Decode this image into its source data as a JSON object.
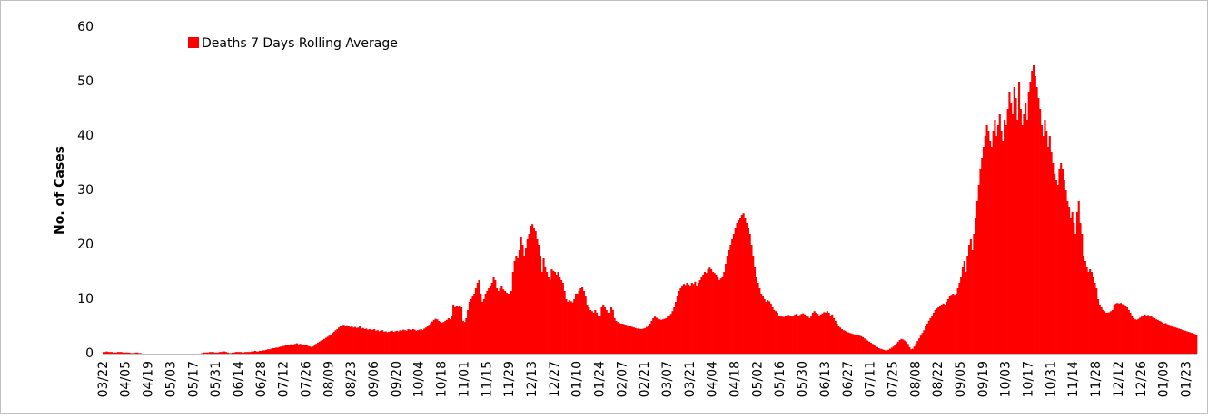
{
  "chart_data": {
    "type": "bar",
    "legend": "Deaths 7 Days Rolling Average",
    "color": "#ff0000",
    "ylabel": "No. of Cases",
    "ylim": [
      0,
      60
    ],
    "yticks": [
      0,
      10,
      20,
      30,
      40,
      50,
      60
    ],
    "grid": false,
    "legend_position": "top-left",
    "categories": [
      "03/22",
      null,
      null,
      null,
      null,
      null,
      null,
      null,
      null,
      null,
      null,
      null,
      null,
      null,
      "04/05",
      null,
      null,
      null,
      null,
      null,
      null,
      null,
      null,
      null,
      null,
      null,
      null,
      null,
      "04/19",
      null,
      null,
      null,
      null,
      null,
      null,
      null,
      null,
      null,
      null,
      null,
      null,
      null,
      "05/03",
      null,
      null,
      null,
      null,
      null,
      null,
      null,
      null,
      null,
      null,
      null,
      null,
      null,
      "05/17",
      null,
      null,
      null,
      null,
      null,
      null,
      null,
      null,
      null,
      null,
      null,
      null,
      null,
      "05/31",
      null,
      null,
      null,
      null,
      null,
      null,
      null,
      null,
      null,
      null,
      null,
      null,
      null,
      "06/14",
      null,
      null,
      null,
      null,
      null,
      null,
      null,
      null,
      null,
      null,
      null,
      null,
      null,
      "06/28",
      null,
      null,
      null,
      null,
      null,
      null,
      null,
      null,
      null,
      null,
      null,
      null,
      null,
      "07/12",
      null,
      null,
      null,
      null,
      null,
      null,
      null,
      null,
      null,
      null,
      null,
      null,
      null,
      "07/26",
      null,
      null,
      null,
      null,
      null,
      null,
      null,
      null,
      null,
      null,
      null,
      null,
      null,
      "08/09",
      null,
      null,
      null,
      null,
      null,
      null,
      null,
      null,
      null,
      null,
      null,
      null,
      null,
      "08/23",
      null,
      null,
      null,
      null,
      null,
      null,
      null,
      null,
      null,
      null,
      null,
      null,
      null,
      "09/06",
      null,
      null,
      null,
      null,
      null,
      null,
      null,
      null,
      null,
      null,
      null,
      null,
      null,
      "09/20",
      null,
      null,
      null,
      null,
      null,
      null,
      null,
      null,
      null,
      null,
      null,
      null,
      null,
      "10/04",
      null,
      null,
      null,
      null,
      null,
      null,
      null,
      null,
      null,
      null,
      null,
      null,
      null,
      "10/18",
      null,
      null,
      null,
      null,
      null,
      null,
      null,
      null,
      null,
      null,
      null,
      null,
      null,
      "11/01",
      null,
      null,
      null,
      null,
      null,
      null,
      null,
      null,
      null,
      null,
      null,
      null,
      null,
      "11/15",
      null,
      null,
      null,
      null,
      null,
      null,
      null,
      null,
      null,
      null,
      null,
      null,
      null,
      "11/29",
      null,
      null,
      null,
      null,
      null,
      null,
      null,
      null,
      null,
      null,
      null,
      null,
      null,
      "12/13",
      null,
      null,
      null,
      null,
      null,
      null,
      null,
      null,
      null,
      null,
      null,
      null,
      null,
      "12/27",
      null,
      null,
      null,
      null,
      null,
      null,
      null,
      null,
      null,
      null,
      null,
      null,
      null,
      "01/10",
      null,
      null,
      null,
      null,
      null,
      null,
      null,
      null,
      null,
      null,
      null,
      null,
      null,
      "01/24",
      null,
      null,
      null,
      null,
      null,
      null,
      null,
      null,
      null,
      null,
      null,
      null,
      null,
      "02/07",
      null,
      null,
      null,
      null,
      null,
      null,
      null,
      null,
      null,
      null,
      null,
      null,
      null,
      "02/21",
      null,
      null,
      null,
      null,
      null,
      null,
      null,
      null,
      null,
      null,
      null,
      null,
      null,
      "03/07",
      null,
      null,
      null,
      null,
      null,
      null,
      null,
      null,
      null,
      null,
      null,
      null,
      null,
      "03/21",
      null,
      null,
      null,
      null,
      null,
      null,
      null,
      null,
      null,
      null,
      null,
      null,
      null,
      "04/04",
      null,
      null,
      null,
      null,
      null,
      null,
      null,
      null,
      null,
      null,
      null,
      null,
      null,
      "04/18",
      null,
      null,
      null,
      null,
      null,
      null,
      null,
      null,
      null,
      null,
      null,
      null,
      null,
      "05/02",
      null,
      null,
      null,
      null,
      null,
      null,
      null,
      null,
      null,
      null,
      null,
      null,
      null,
      "05/16",
      null,
      null,
      null,
      null,
      null,
      null,
      null,
      null,
      null,
      null,
      null,
      null,
      null,
      "05/30",
      null,
      null,
      null,
      null,
      null,
      null,
      null,
      null,
      null,
      null,
      null,
      null,
      null,
      "06/13",
      null,
      null,
      null,
      null,
      null,
      null,
      null,
      null,
      null,
      null,
      null,
      null,
      null,
      "06/27",
      null,
      null,
      null,
      null,
      null,
      null,
      null,
      null,
      null,
      null,
      null,
      null,
      null,
      "07/11",
      null,
      null,
      null,
      null,
      null,
      null,
      null,
      null,
      null,
      null,
      null,
      null,
      null,
      "07/25",
      null,
      null,
      null,
      null,
      null,
      null,
      null,
      null,
      null,
      null,
      null,
      null,
      null,
      "08/08",
      null,
      null,
      null,
      null,
      null,
      null,
      null,
      null,
      null,
      null,
      null,
      null,
      null,
      "08/22",
      null,
      null,
      null,
      null,
      null,
      null,
      null,
      null,
      null,
      null,
      null,
      null,
      null,
      "09/05",
      null,
      null,
      null,
      null,
      null,
      null,
      null,
      null,
      null,
      null,
      null,
      null,
      null,
      "09/19",
      null,
      null,
      null,
      null,
      null,
      null,
      null,
      null,
      null,
      null,
      null,
      null,
      null,
      "10/03",
      null,
      null,
      null,
      null,
      null,
      null,
      null,
      null,
      null,
      null,
      null,
      null,
      null,
      "10/17",
      null,
      null,
      null,
      null,
      null,
      null,
      null,
      null,
      null,
      null,
      null,
      null,
      null,
      "10/31",
      null,
      null,
      null,
      null,
      null,
      null,
      null,
      null,
      null,
      null,
      null,
      null,
      null,
      "11/14",
      null,
      null,
      null,
      null,
      null,
      null,
      null,
      null,
      null,
      null,
      null,
      null,
      null,
      "11/28",
      null,
      null,
      null,
      null,
      null,
      null,
      null,
      null,
      null,
      null,
      null,
      null,
      null,
      "12/12",
      null,
      null,
      null,
      null,
      null,
      null,
      null,
      null,
      null,
      null,
      null,
      null,
      null,
      "12/26",
      null,
      null,
      null,
      null,
      null,
      null,
      null,
      null,
      null,
      null,
      null,
      null,
      null,
      "01/09",
      null,
      null,
      null,
      null,
      null,
      null,
      null,
      null,
      null,
      null,
      null,
      null,
      null,
      "01/23",
      null,
      null,
      null,
      null,
      null,
      null
    ],
    "values": [
      0.3,
      0.3,
      0.4,
      0.3,
      0.3,
      0.3,
      0.2,
      0.2,
      0.2,
      0.3,
      0.3,
      0.3,
      0.2,
      0.2,
      0.2,
      0.2,
      0.2,
      0.1,
      0.1,
      0.1,
      0.2,
      0.2,
      0.1,
      0.1,
      0,
      0,
      0,
      0,
      0,
      0,
      0,
      0,
      0,
      0,
      0,
      0,
      0,
      0,
      0,
      0,
      0,
      0,
      0,
      0,
      0,
      0,
      0,
      0,
      0,
      0,
      0,
      0,
      0,
      0,
      0,
      0,
      0,
      0,
      0,
      0,
      0,
      0.1,
      0.2,
      0.2,
      0.2,
      0.2,
      0.3,
      0.3,
      0.3,
      0.2,
      0.2,
      0.2,
      0.3,
      0.3,
      0.4,
      0.4,
      0.3,
      0.2,
      0.1,
      0.1,
      0.2,
      0.2,
      0.3,
      0.3,
      0.3,
      0.3,
      0.2,
      0.2,
      0.3,
      0.3,
      0.3,
      0.3,
      0.4,
      0.4,
      0.5,
      0.4,
      0.4,
      0.5,
      0.5,
      0.6,
      0.6,
      0.7,
      0.8,
      0.8,
      0.9,
      1,
      1,
      1.1,
      1.1,
      1.2,
      1.3,
      1.4,
      1.4,
      1.5,
      1.5,
      1.6,
      1.7,
      1.6,
      1.7,
      1.8,
      1.9,
      1.7,
      1.8,
      1.7,
      1.6,
      1.5,
      1.5,
      1.4,
      1.3,
      1.2,
      1.3,
      1.5,
      1.8,
      2,
      2.2,
      2.4,
      2.5,
      2.7,
      2.9,
      3.1,
      3.3,
      3.5,
      3.8,
      4,
      4.3,
      4.5,
      4.8,
      5,
      5.2,
      5.3,
      5.1,
      5.2,
      5,
      4.9,
      5,
      4.8,
      4.9,
      4.7,
      4.8,
      5,
      4.6,
      4.7,
      4.5,
      4.6,
      4.4,
      4.5,
      4.3,
      4.4,
      4.5,
      4.2,
      4.3,
      4.1,
      4.2,
      4.3,
      4,
      4.1,
      3.9,
      4,
      4.1,
      4.2,
      4,
      4.1,
      4.2,
      4.1,
      4.3,
      4.2,
      4.4,
      4.3,
      4.2,
      4.5,
      4.4,
      4.3,
      4.5,
      4.4,
      4.2,
      4.3,
      4.4,
      4.5,
      4.3,
      4.6,
      4.8,
      5,
      5.3,
      5.6,
      5.9,
      6.2,
      6.4,
      6.3,
      6,
      5.8,
      5.7,
      5.8,
      6,
      6.2,
      6.5,
      6.3,
      7,
      9,
      8.5,
      8.8,
      8.6,
      8.7,
      8.5,
      6,
      5.8,
      6.5,
      8,
      9.5,
      10,
      10.5,
      11,
      12,
      13,
      13.5,
      11,
      9.5,
      10,
      11,
      11.5,
      12,
      12.5,
      13,
      14,
      13.5,
      12,
      11.5,
      12,
      12.5,
      11.8,
      11.5,
      11.2,
      11,
      11,
      11.5,
      15,
      17,
      18,
      17.5,
      19,
      21.5,
      20,
      18,
      19.5,
      21,
      22,
      23.5,
      23.8,
      23,
      22.5,
      21,
      20,
      18,
      15,
      17.5,
      16,
      15,
      14,
      13.5,
      15.5,
      15.2,
      15,
      14.5,
      15,
      14,
      13.5,
      13,
      11.5,
      10,
      9.5,
      9.8,
      9.6,
      9.4,
      10,
      11,
      11,
      11.5,
      12,
      12.2,
      11.5,
      10.5,
      9,
      8.5,
      8,
      7.8,
      7.5,
      8,
      7.5,
      7,
      7,
      8.5,
      9,
      8.5,
      8,
      7.5,
      7.5,
      8.5,
      8,
      6.5,
      6,
      5.8,
      5.6,
      5.5,
      5.5,
      5.4,
      5.3,
      5.2,
      5.1,
      5,
      4.9,
      4.8,
      4.7,
      4.6,
      4.6,
      4.5,
      4.5,
      4.6,
      4.7,
      4.9,
      5.2,
      5.5,
      6,
      6.5,
      6.8,
      6.6,
      6.4,
      6.3,
      6.2,
      6.3,
      6.4,
      6.5,
      6.8,
      7,
      7.3,
      7.8,
      8.5,
      9.5,
      10.5,
      11.5,
      12,
      12.5,
      12.8,
      12.6,
      13,
      12.7,
      12.5,
      13,
      12.8,
      13.2,
      12.5,
      13,
      13.5,
      14,
      14.5,
      15,
      14.8,
      15.5,
      15.8,
      15.5,
      15,
      14.8,
      14.5,
      14,
      13.5,
      13.8,
      14.2,
      15,
      16.5,
      18,
      19,
      20,
      21,
      22,
      23,
      24,
      24.5,
      25,
      25.5,
      25.8,
      25,
      24,
      23,
      22,
      20,
      18,
      16,
      14,
      13,
      12,
      11,
      10.5,
      10,
      9.5,
      9.8,
      9.6,
      9.2,
      8.5,
      8,
      7.8,
      7.5,
      7,
      7,
      6.8,
      6.7,
      6.9,
      7,
      7.1,
      7,
      6.8,
      7,
      7.2,
      7.3,
      7,
      7.1,
      7.3,
      7.4,
      7.2,
      7,
      6.8,
      6.5,
      6.8,
      7.5,
      7.8,
      7.5,
      7.3,
      7,
      7.2,
      7.4,
      7.6,
      7.5,
      7.8,
      7.5,
      7,
      7.2,
      6.5,
      6,
      5.5,
      5,
      4.8,
      4.5,
      4.3,
      4.2,
      4,
      3.9,
      3.8,
      3.7,
      3.6,
      3.5,
      3.5,
      3.4,
      3.3,
      3.2,
      3,
      2.8,
      2.6,
      2.4,
      2.2,
      2,
      1.8,
      1.6,
      1.4,
      1.2,
      1,
      0.9,
      0.8,
      0.7,
      0.6,
      0.6,
      0.7,
      0.9,
      1.1,
      1.3,
      1.6,
      1.9,
      2.2,
      2.5,
      2.7,
      2.6,
      2.4,
      2.2,
      1.8,
      1.2,
      0.8,
      0.9,
      1.3,
      1.8,
      2.3,
      2.8,
      3.3,
      3.8,
      4.3,
      5,
      5.5,
      6,
      6.5,
      7,
      7.5,
      8,
      8.3,
      8.5,
      8.8,
      9,
      9.2,
      9,
      9.5,
      10,
      10.5,
      10.8,
      11,
      10.8,
      11,
      12,
      13,
      14,
      16,
      17,
      15,
      18,
      20,
      21,
      19,
      22,
      25,
      28,
      31,
      34,
      36,
      38,
      40,
      42,
      41,
      39,
      38,
      41,
      43,
      40,
      42,
      44,
      41,
      39,
      43,
      42,
      45,
      48,
      46,
      44,
      49,
      47,
      43,
      50,
      45,
      42,
      44,
      46,
      43,
      48,
      50,
      52,
      53,
      51,
      49,
      47,
      45,
      42,
      40,
      43,
      41,
      38,
      40,
      37,
      35,
      33,
      32,
      31,
      34,
      35,
      34,
      32,
      30,
      28,
      27,
      25,
      26,
      24,
      22,
      26,
      28,
      24,
      22,
      18,
      17,
      16,
      15,
      15.5,
      15,
      14,
      13,
      12,
      10,
      9,
      8.5,
      8,
      7.8,
      7.5,
      7.5,
      7.6,
      7.8,
      8,
      9,
      9.2,
      9.3,
      9.2,
      9.3,
      9.1,
      9,
      8.8,
      8.5,
      8,
      7.5,
      7,
      6.5,
      6.3,
      6.2,
      6.4,
      6.6,
      6.8,
      7,
      7.2,
      7,
      7.1,
      6.8,
      6.9,
      6.6,
      6.5,
      6.3,
      6.2,
      6,
      5.9,
      5.7,
      5.5,
      5.6,
      5.4,
      5.3,
      5.2,
      5,
      4.9,
      4.8,
      4.7,
      4.6,
      4.5,
      4.4,
      4.3,
      4.2,
      4.1,
      4,
      3.9,
      3.8,
      3.7,
      3.6,
      3.5
    ]
  }
}
